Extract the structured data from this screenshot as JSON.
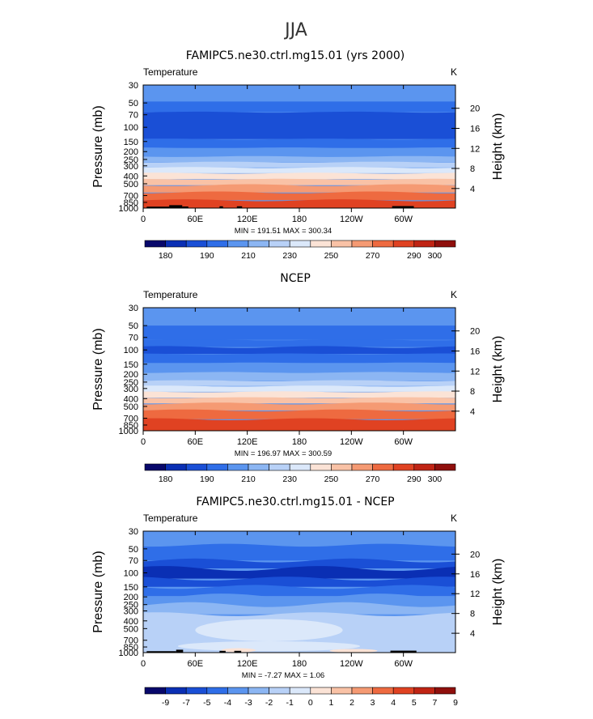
{
  "figure": {
    "title": "JJA"
  },
  "colors": {
    "cmap_abs": [
      "#08086b",
      "#0a2fb4",
      "#1a4fd6",
      "#2f6ee8",
      "#5b95ef",
      "#8cb6f3",
      "#b8d1f7",
      "#dbe8fa",
      "#fbe3d6",
      "#f9c2a6",
      "#f59a73",
      "#ee6a40",
      "#e04222",
      "#c02414",
      "#8f0f0c"
    ],
    "cmap_diff": [
      "#08086b",
      "#0a2fb4",
      "#1a4fd6",
      "#2f6ee8",
      "#5b95ef",
      "#8cb6f3",
      "#b8d1f7",
      "#dbe8fa",
      "#fbe3d6",
      "#f9c2a6",
      "#f59a73",
      "#ee6a40",
      "#e04222",
      "#c02414",
      "#8f0f0c"
    ],
    "topography": "#000000"
  },
  "chart_data": [
    {
      "type": "contour",
      "title": "FAMIPC5.ne30.ctrl.mg15.01 (yrs 2000)",
      "variable": "Temperature",
      "units": "K",
      "ylabel": "Pressure  (mb)",
      "ylabel_right": "Height  (km)",
      "x_ticks": [
        "0",
        "60E",
        "120E",
        "180",
        "120W",
        "60W"
      ],
      "x_tick_lon": [
        0,
        60,
        120,
        180,
        240,
        300
      ],
      "xlim": [
        0,
        360
      ],
      "y_ticks": [
        30,
        50,
        70,
        100,
        150,
        200,
        250,
        300,
        400,
        500,
        700,
        850,
        1000
      ],
      "ylim": [
        30,
        1000
      ],
      "y_scale": "log",
      "height_ticks": [
        4,
        8,
        12,
        16,
        20
      ],
      "stats_label": "MIN = 191.51  MAX = 300.34",
      "min": 191.51,
      "max": 300.34,
      "colorbar_labels": [
        "180",
        "190",
        "210",
        "230",
        "250",
        "270",
        "290",
        "300"
      ],
      "colorbar_label_after_box": [
        1,
        3,
        5,
        7,
        9,
        11,
        13,
        14
      ],
      "bands": [
        {
          "p_top": 30,
          "p_bot": 48,
          "color_index": 4,
          "amp": 0
        },
        {
          "p_top": 48,
          "p_bot": 65,
          "color_index": 3,
          "amp": 0
        },
        {
          "p_top": 65,
          "p_bot": 140,
          "color_index": 2,
          "amp": 1
        },
        {
          "p_top": 140,
          "p_bot": 180,
          "color_index": 3,
          "amp": 1
        },
        {
          "p_top": 180,
          "p_bot": 230,
          "color_index": 4,
          "amp": 1
        },
        {
          "p_top": 230,
          "p_bot": 270,
          "color_index": 5,
          "amp": 1
        },
        {
          "p_top": 270,
          "p_bot": 315,
          "color_index": 6,
          "amp": 1
        },
        {
          "p_top": 315,
          "p_bot": 370,
          "color_index": 7,
          "amp": 1
        },
        {
          "p_top": 370,
          "p_bot": 440,
          "color_index": 8,
          "amp": 1
        },
        {
          "p_top": 440,
          "p_bot": 520,
          "color_index": 9,
          "amp": 1
        },
        {
          "p_top": 520,
          "p_bot": 640,
          "color_index": 10,
          "amp": 2
        },
        {
          "p_top": 640,
          "p_bot": 800,
          "color_index": 11,
          "amp": 2
        },
        {
          "p_top": 800,
          "p_bot": 1000,
          "color_index": 12,
          "amp": 2
        }
      ],
      "topo": [
        {
          "lon0": 4,
          "lon1": 30,
          "p": 960
        },
        {
          "lon0": 30,
          "lon1": 45,
          "p": 920
        },
        {
          "lon0": 45,
          "lon1": 52,
          "p": 955
        },
        {
          "lon0": 88,
          "lon1": 92,
          "p": 950
        },
        {
          "lon0": 108,
          "lon1": 114,
          "p": 950
        },
        {
          "lon0": 287,
          "lon1": 312,
          "p": 945
        }
      ]
    },
    {
      "type": "contour",
      "title": "NCEP",
      "variable": "Temperature",
      "units": "K",
      "ylabel": "Pressure  (mb)",
      "ylabel_right": "Height  (km)",
      "x_ticks": [
        "0",
        "60E",
        "120E",
        "180",
        "120W",
        "60W"
      ],
      "x_tick_lon": [
        0,
        60,
        120,
        180,
        240,
        300
      ],
      "xlim": [
        0,
        360
      ],
      "y_ticks": [
        30,
        50,
        70,
        100,
        150,
        200,
        250,
        300,
        400,
        500,
        700,
        850,
        1000
      ],
      "ylim": [
        30,
        1000
      ],
      "y_scale": "log",
      "height_ticks": [
        4,
        8,
        12,
        16,
        20
      ],
      "stats_label": "MIN = 196.97  MAX = 300.59",
      "min": 196.97,
      "max": 300.59,
      "colorbar_labels": [
        "180",
        "190",
        "210",
        "230",
        "250",
        "270",
        "290",
        "300"
      ],
      "colorbar_label_after_box": [
        1,
        3,
        5,
        7,
        9,
        11,
        13,
        14
      ],
      "bands": [
        {
          "p_top": 30,
          "p_bot": 50,
          "color_index": 4,
          "amp": 0
        },
        {
          "p_top": 50,
          "p_bot": 75,
          "color_index": 3,
          "amp": 0
        },
        {
          "p_top": 75,
          "p_bot": 92,
          "color_index": 3,
          "amp": 1
        },
        {
          "p_top": 92,
          "p_bot": 112,
          "color_index": 2,
          "amp": 2
        },
        {
          "p_top": 112,
          "p_bot": 145,
          "color_index": 3,
          "amp": 1
        },
        {
          "p_top": 145,
          "p_bot": 190,
          "color_index": 4,
          "amp": 1
        },
        {
          "p_top": 190,
          "p_bot": 240,
          "color_index": 5,
          "amp": 1
        },
        {
          "p_top": 240,
          "p_bot": 280,
          "color_index": 6,
          "amp": 1
        },
        {
          "p_top": 280,
          "p_bot": 330,
          "color_index": 7,
          "amp": 1
        },
        {
          "p_top": 330,
          "p_bot": 390,
          "color_index": 8,
          "amp": 1
        },
        {
          "p_top": 390,
          "p_bot": 460,
          "color_index": 9,
          "amp": 1
        },
        {
          "p_top": 460,
          "p_bot": 560,
          "color_index": 10,
          "amp": 2
        },
        {
          "p_top": 560,
          "p_bot": 720,
          "color_index": 11,
          "amp": 2
        },
        {
          "p_top": 720,
          "p_bot": 1000,
          "color_index": 12,
          "amp": 2
        }
      ],
      "topo": []
    },
    {
      "type": "contour",
      "title": "FAMIPC5.ne30.ctrl.mg15.01 - NCEP",
      "variable": "Temperature",
      "units": "K",
      "ylabel": "Pressure  (mb)",
      "ylabel_right": "Height  (km)",
      "x_ticks": [
        "0",
        "60E",
        "120E",
        "180",
        "120W",
        "60W"
      ],
      "x_tick_lon": [
        0,
        60,
        120,
        180,
        240,
        300
      ],
      "xlim": [
        0,
        360
      ],
      "y_ticks": [
        30,
        50,
        70,
        100,
        150,
        200,
        250,
        300,
        400,
        500,
        700,
        850,
        1000
      ],
      "ylim": [
        30,
        1000
      ],
      "y_scale": "log",
      "height_ticks": [
        4,
        8,
        12,
        16,
        20
      ],
      "stats_label": "MIN =  -7.27  MAX =   1.06",
      "min": -7.27,
      "max": 1.06,
      "colorbar_labels": [
        "-9",
        "-7",
        "-5",
        "-4",
        "-3",
        "-2",
        "-1",
        "0",
        "1",
        "2",
        "3",
        "4",
        "5",
        "7",
        "9"
      ],
      "colorbar_label_after_box": [
        1,
        2,
        3,
        4,
        5,
        6,
        7,
        8,
        9,
        10,
        11,
        12,
        13,
        14,
        15
      ],
      "bands": [
        {
          "p_top": 30,
          "p_bot": 45,
          "color_index": 4,
          "amp": 3
        },
        {
          "p_top": 45,
          "p_bot": 70,
          "color_index": 3,
          "amp": 3
        },
        {
          "p_top": 70,
          "p_bot": 88,
          "color_index": 2,
          "amp": 4
        },
        {
          "p_top": 88,
          "p_bot": 118,
          "color_index": 1,
          "amp": 5
        },
        {
          "p_top": 118,
          "p_bot": 150,
          "color_index": 2,
          "amp": 4
        },
        {
          "p_top": 150,
          "p_bot": 195,
          "color_index": 3,
          "amp": 4
        },
        {
          "p_top": 195,
          "p_bot": 250,
          "color_index": 4,
          "amp": 5
        },
        {
          "p_top": 250,
          "p_bot": 330,
          "color_index": 5,
          "amp": 5
        },
        {
          "p_top": 330,
          "p_bot": 1000,
          "color_index": 6,
          "amp": 4
        },
        {
          "p_top": 380,
          "p_bot": 720,
          "color_index": 7,
          "amp": 0,
          "lon0": 60,
          "lon1": 230
        },
        {
          "p_top": 720,
          "p_bot": 960,
          "color_index": 7,
          "amp": 0,
          "lon0": 40,
          "lon1": 250
        },
        {
          "p_top": 880,
          "p_bot": 990,
          "color_index": 8,
          "amp": 0,
          "lon0": 90,
          "lon1": 130
        },
        {
          "p_top": 900,
          "p_bot": 1000,
          "color_index": 8,
          "amp": 0,
          "lon0": 215,
          "lon1": 270
        }
      ],
      "topo": [
        {
          "lon0": 4,
          "lon1": 38,
          "p": 960
        },
        {
          "lon0": 38,
          "lon1": 46,
          "p": 920
        },
        {
          "lon0": 88,
          "lon1": 95,
          "p": 950
        },
        {
          "lon0": 105,
          "lon1": 113,
          "p": 950
        },
        {
          "lon0": 285,
          "lon1": 315,
          "p": 945
        }
      ]
    }
  ]
}
